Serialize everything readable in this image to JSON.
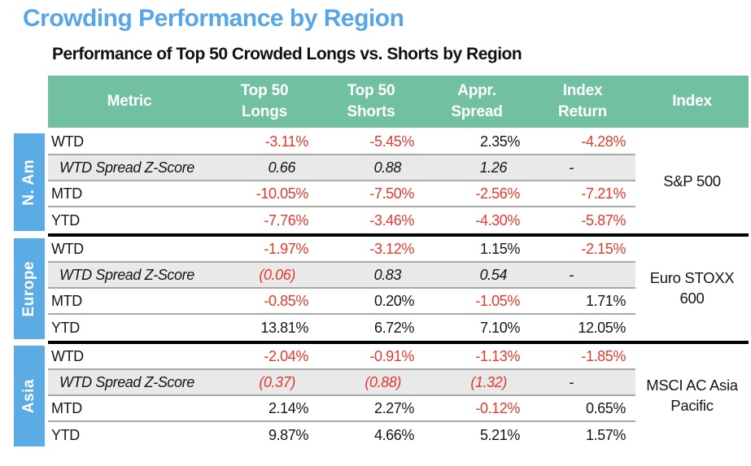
{
  "chart_data": {
    "type": "table",
    "title": "Crowding Performance by Region",
    "subtitle": "Performance of Top 50 Crowded Longs vs. Shorts by Region",
    "columns": [
      "Metric",
      "Top 50 Longs",
      "Top 50 Shorts",
      "Appr. Spread",
      "Index Return",
      "Index"
    ],
    "sections": [
      {
        "region": "N. Am",
        "index_label": "S&P 500",
        "rows": [
          {
            "metric": "WTD",
            "zscore": false,
            "values": [
              "-3.11%",
              "-5.45%",
              "2.35%",
              "-4.28%"
            ]
          },
          {
            "metric": "WTD Spread Z-Score",
            "zscore": true,
            "values": [
              "0.66",
              "0.88",
              "1.26",
              "-"
            ]
          },
          {
            "metric": "MTD",
            "zscore": false,
            "values": [
              "-10.05%",
              "-7.50%",
              "-2.56%",
              "-7.21%"
            ]
          },
          {
            "metric": "YTD",
            "zscore": false,
            "values": [
              "-7.76%",
              "-3.46%",
              "-4.30%",
              "-5.87%"
            ]
          }
        ]
      },
      {
        "region": "Europe",
        "index_label": "Euro STOXX 600",
        "rows": [
          {
            "metric": "WTD",
            "zscore": false,
            "values": [
              "-1.97%",
              "-3.12%",
              "1.15%",
              "-2.15%"
            ]
          },
          {
            "metric": "WTD Spread Z-Score",
            "zscore": true,
            "values": [
              "(0.06)",
              "0.83",
              "0.54",
              "-"
            ]
          },
          {
            "metric": "MTD",
            "zscore": false,
            "values": [
              "-0.85%",
              "0.20%",
              "-1.05%",
              "1.71%"
            ]
          },
          {
            "metric": "YTD",
            "zscore": false,
            "values": [
              "13.81%",
              "6.72%",
              "7.10%",
              "12.05%"
            ]
          }
        ]
      },
      {
        "region": "Asia",
        "index_label": "MSCI AC Asia Pacific",
        "rows": [
          {
            "metric": "WTD",
            "zscore": false,
            "values": [
              "-2.04%",
              "-0.91%",
              "-1.13%",
              "-1.85%"
            ]
          },
          {
            "metric": "WTD Spread Z-Score",
            "zscore": true,
            "values": [
              "(0.37)",
              "(0.88)",
              "(1.32)",
              "-"
            ]
          },
          {
            "metric": "MTD",
            "zscore": false,
            "values": [
              "2.14%",
              "2.27%",
              "-0.12%",
              "0.65%"
            ]
          },
          {
            "metric": "YTD",
            "zscore": false,
            "values": [
              "9.87%",
              "4.66%",
              "5.21%",
              "1.57%"
            ]
          }
        ]
      }
    ]
  },
  "colors": {
    "title_blue": "#57A7E8",
    "header_green": "#70C0A1",
    "region_blue": "#5BACE4",
    "negative_red": "#E23A2E",
    "zscore_row_bg": "#E9E9E9",
    "row_border": "#A9A9A9",
    "section_border": "#000000"
  }
}
